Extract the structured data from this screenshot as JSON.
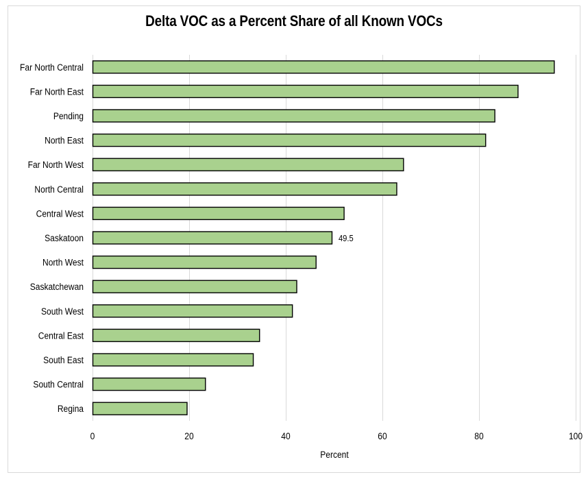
{
  "chart_data": {
    "type": "bar",
    "orientation": "horizontal",
    "title": "Delta VOC as a Percent Share of all Known VOCs",
    "xlabel": "Percent",
    "ylabel": "",
    "xlim": [
      0,
      100
    ],
    "x_ticks": [
      0,
      20,
      40,
      60,
      80,
      100
    ],
    "grid": "vertical",
    "categories": [
      "Far North Central",
      "Far North East",
      "Pending",
      "North East",
      "Far North West",
      "North Central",
      "Central West",
      "Saskatoon",
      "North West",
      "Saskatchewan",
      "South West",
      "Central East",
      "South East",
      "South Central",
      "Regina"
    ],
    "values": [
      95.5,
      88.0,
      83.2,
      81.3,
      64.3,
      62.9,
      52.0,
      49.5,
      46.2,
      42.2,
      41.3,
      34.5,
      33.2,
      23.3,
      19.5
    ],
    "data_labels": [
      {
        "category": "Saskatoon",
        "text": "49.5"
      }
    ],
    "bar_color": "#a9d18e",
    "bar_edge_color": "#000000",
    "grid_color": "#d9d9d9"
  }
}
